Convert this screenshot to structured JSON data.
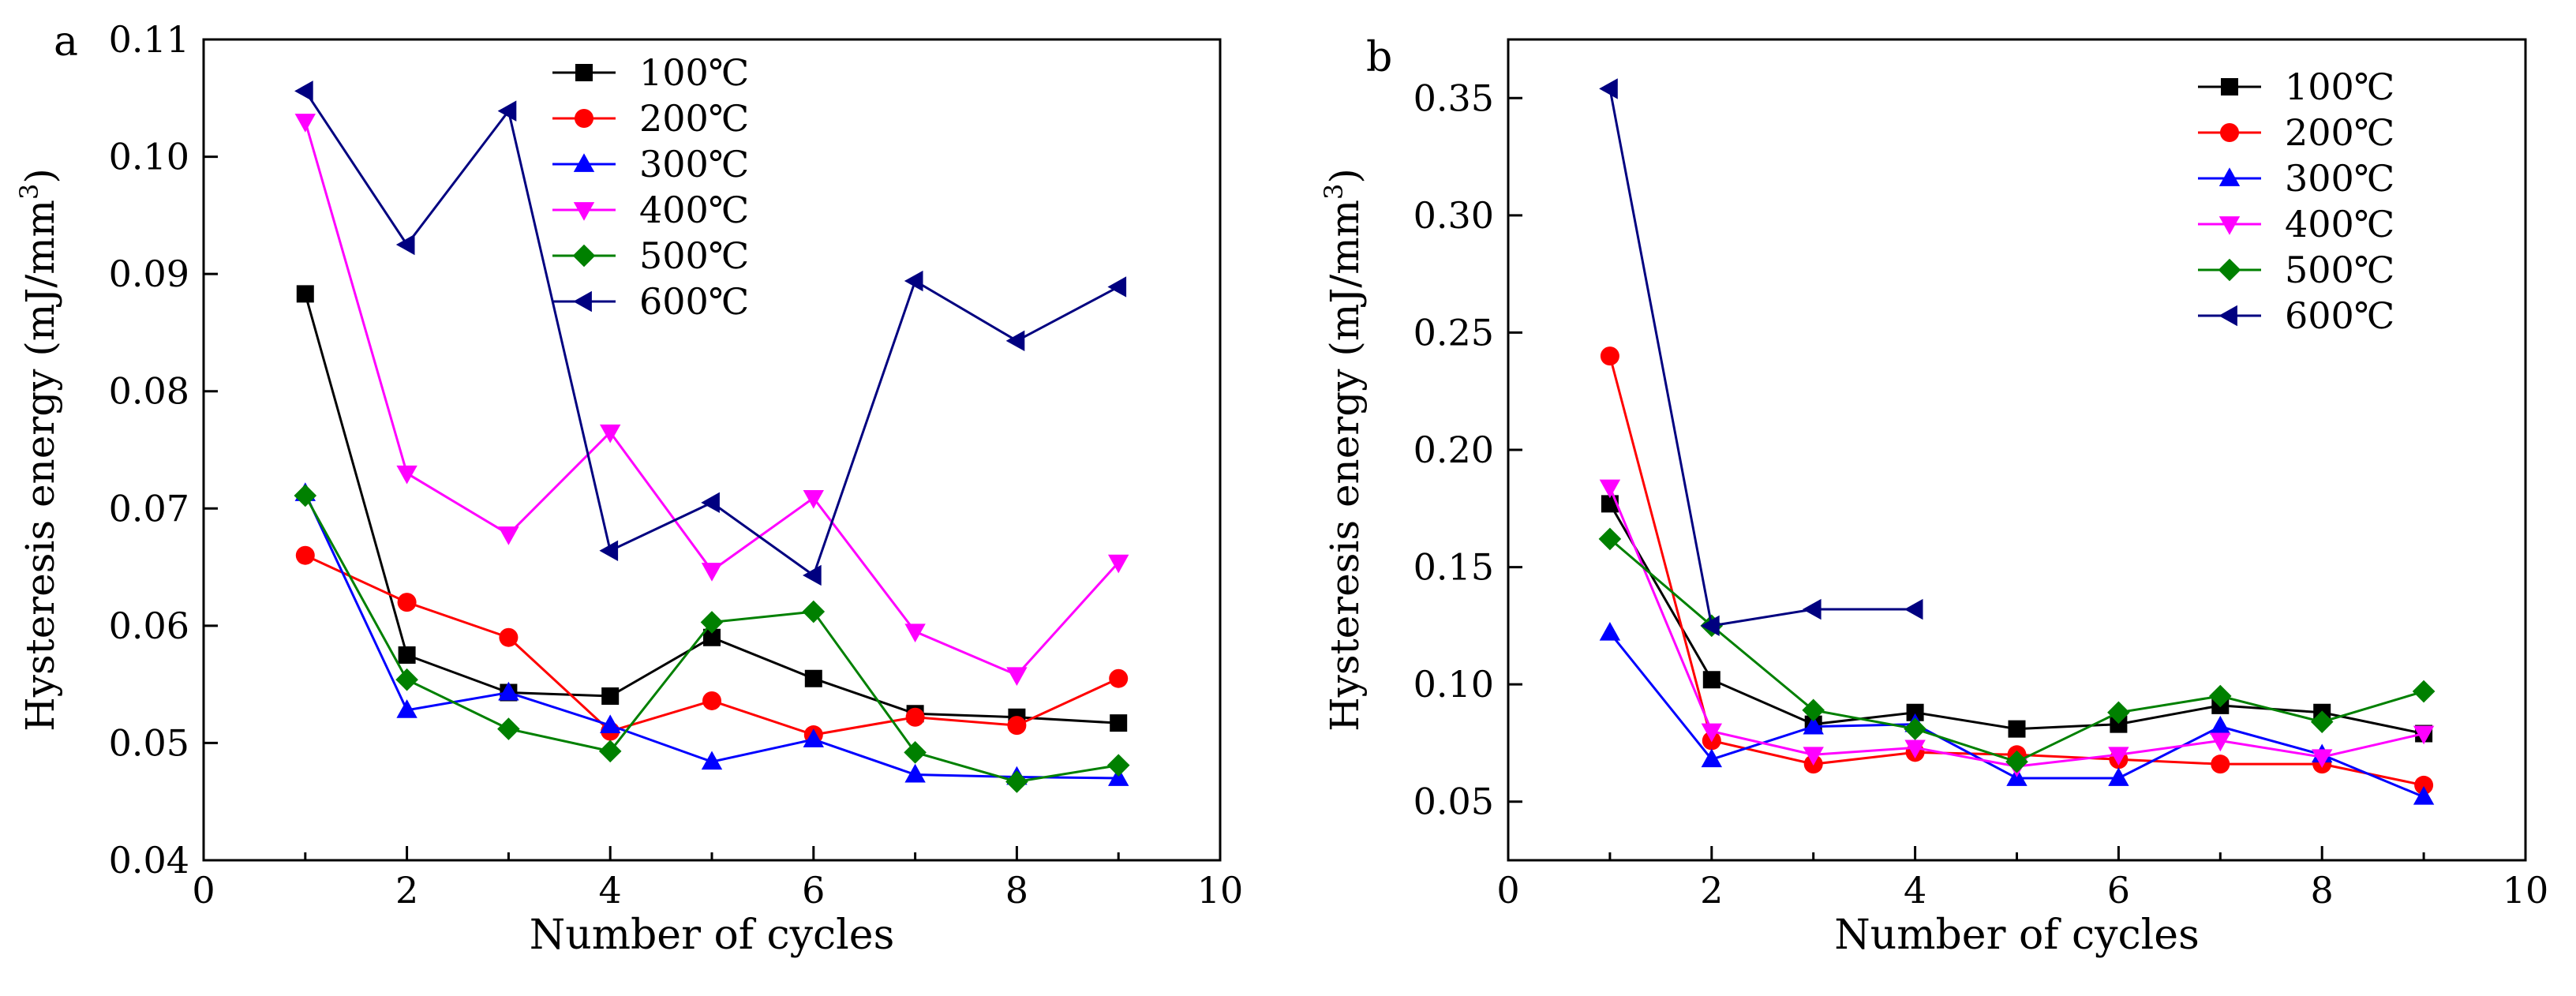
{
  "chart_data": [
    {
      "type": "line",
      "panel_label": "a",
      "xlabel": "Number of cycles",
      "ylabel_main": "Hysteresis energy  (mJ/mm",
      "ylabel_sup": "3",
      "ylabel_end": ")",
      "xlim": [
        0,
        10
      ],
      "ylim": [
        0.04,
        0.11
      ],
      "xticks": [
        0,
        2,
        4,
        6,
        8,
        10
      ],
      "xtick_labels": [
        "0",
        "2",
        "4",
        "6",
        "8",
        "10"
      ],
      "yticks": [
        0.04,
        0.05,
        0.06,
        0.07,
        0.08,
        0.09,
        0.1,
        0.11
      ],
      "ytick_labels": [
        "0.04",
        "0.05",
        "0.06",
        "0.07",
        "0.08",
        "0.09",
        "0.10",
        "0.11"
      ],
      "legend_position": "top-center",
      "series": [
        {
          "name": "100℃",
          "color": "#000000",
          "marker": "square",
          "x": [
            1,
            2,
            3,
            4,
            5,
            6,
            7,
            8,
            9
          ],
          "y": [
            0.0883,
            0.0575,
            0.0543,
            0.054,
            0.059,
            0.0555,
            0.0525,
            0.0522,
            0.0517
          ]
        },
        {
          "name": "200℃",
          "color": "#ff0000",
          "marker": "circle",
          "x": [
            1,
            2,
            3,
            4,
            5,
            6,
            7,
            8,
            9
          ],
          "y": [
            0.066,
            0.062,
            0.059,
            0.051,
            0.0536,
            0.0507,
            0.0522,
            0.0515,
            0.0555
          ]
        },
        {
          "name": "300℃",
          "color": "#0000ff",
          "marker": "triangle-up",
          "x": [
            1,
            2,
            3,
            4,
            5,
            6,
            7,
            8,
            9
          ],
          "y": [
            0.0713,
            0.0528,
            0.0543,
            0.0515,
            0.0484,
            0.0503,
            0.0473,
            0.0471,
            0.047
          ]
        },
        {
          "name": "400℃",
          "color": "#ff00ff",
          "marker": "triangle-down",
          "x": [
            1,
            2,
            3,
            4,
            5,
            6,
            7,
            8,
            9
          ],
          "y": [
            0.103,
            0.073,
            0.0678,
            0.0765,
            0.0647,
            0.0709,
            0.0595,
            0.0558,
            0.0654
          ]
        },
        {
          "name": "500℃",
          "color": "#008000",
          "marker": "diamond",
          "x": [
            1,
            2,
            3,
            4,
            5,
            6,
            7,
            8,
            9
          ],
          "y": [
            0.0711,
            0.0554,
            0.0512,
            0.0493,
            0.0603,
            0.0612,
            0.0492,
            0.0467,
            0.0481
          ]
        },
        {
          "name": "600℃",
          "color": "#000080",
          "marker": "triangle-left",
          "x": [
            1,
            2,
            3,
            4,
            5,
            6,
            7,
            8,
            9
          ],
          "y": [
            0.1056,
            0.0925,
            0.1039,
            0.0664,
            0.0705,
            0.0643,
            0.0894,
            0.0843,
            0.0889
          ]
        }
      ]
    },
    {
      "type": "line",
      "panel_label": "b",
      "xlabel": "Number of cycles",
      "ylabel_main": "Hysteresis energy  (mJ/mm",
      "ylabel_sup": "3",
      "ylabel_end": ")",
      "xlim": [
        0,
        10
      ],
      "ylim": [
        0.025,
        0.375
      ],
      "xticks": [
        0,
        2,
        4,
        6,
        8,
        10
      ],
      "xtick_labels": [
        "0",
        "2",
        "4",
        "6",
        "8",
        "10"
      ],
      "yticks": [
        0.05,
        0.1,
        0.15,
        0.2,
        0.25,
        0.3,
        0.35
      ],
      "ytick_labels": [
        "0.05",
        "0.10",
        "0.15",
        "0.20",
        "0.25",
        "0.30",
        "0.35"
      ],
      "legend_position": "top-right",
      "series": [
        {
          "name": "100℃",
          "color": "#000000",
          "marker": "square",
          "x": [
            1,
            2,
            3,
            4,
            5,
            6,
            7,
            8,
            9
          ],
          "y": [
            0.177,
            0.102,
            0.083,
            0.088,
            0.081,
            0.083,
            0.091,
            0.088,
            0.079
          ]
        },
        {
          "name": "200℃",
          "color": "#ff0000",
          "marker": "circle",
          "x": [
            1,
            2,
            3,
            4,
            5,
            6,
            7,
            8,
            9
          ],
          "y": [
            0.24,
            0.076,
            0.066,
            0.071,
            0.07,
            0.068,
            0.066,
            0.066,
            0.057
          ]
        },
        {
          "name": "300℃",
          "color": "#0000ff",
          "marker": "triangle-up",
          "x": [
            1,
            2,
            3,
            4,
            5,
            6,
            7,
            8,
            9
          ],
          "y": [
            0.122,
            0.068,
            0.082,
            0.083,
            0.06,
            0.06,
            0.082,
            0.07,
            0.052
          ]
        },
        {
          "name": "400℃",
          "color": "#ff00ff",
          "marker": "triangle-down",
          "x": [
            1,
            2,
            3,
            4,
            5,
            6,
            7,
            8,
            9
          ],
          "y": [
            0.184,
            0.08,
            0.07,
            0.073,
            0.065,
            0.07,
            0.076,
            0.069,
            0.079
          ]
        },
        {
          "name": "500℃",
          "color": "#008000",
          "marker": "diamond",
          "x": [
            1,
            2,
            3,
            4,
            5,
            6,
            7,
            8,
            9
          ],
          "y": [
            0.162,
            0.125,
            0.089,
            0.081,
            0.067,
            0.088,
            0.095,
            0.084,
            0.097
          ]
        },
        {
          "name": "600℃",
          "color": "#000080",
          "marker": "triangle-left",
          "x": [
            1,
            2,
            3,
            4
          ],
          "y": [
            0.354,
            0.125,
            0.132,
            0.132
          ]
        }
      ]
    }
  ]
}
